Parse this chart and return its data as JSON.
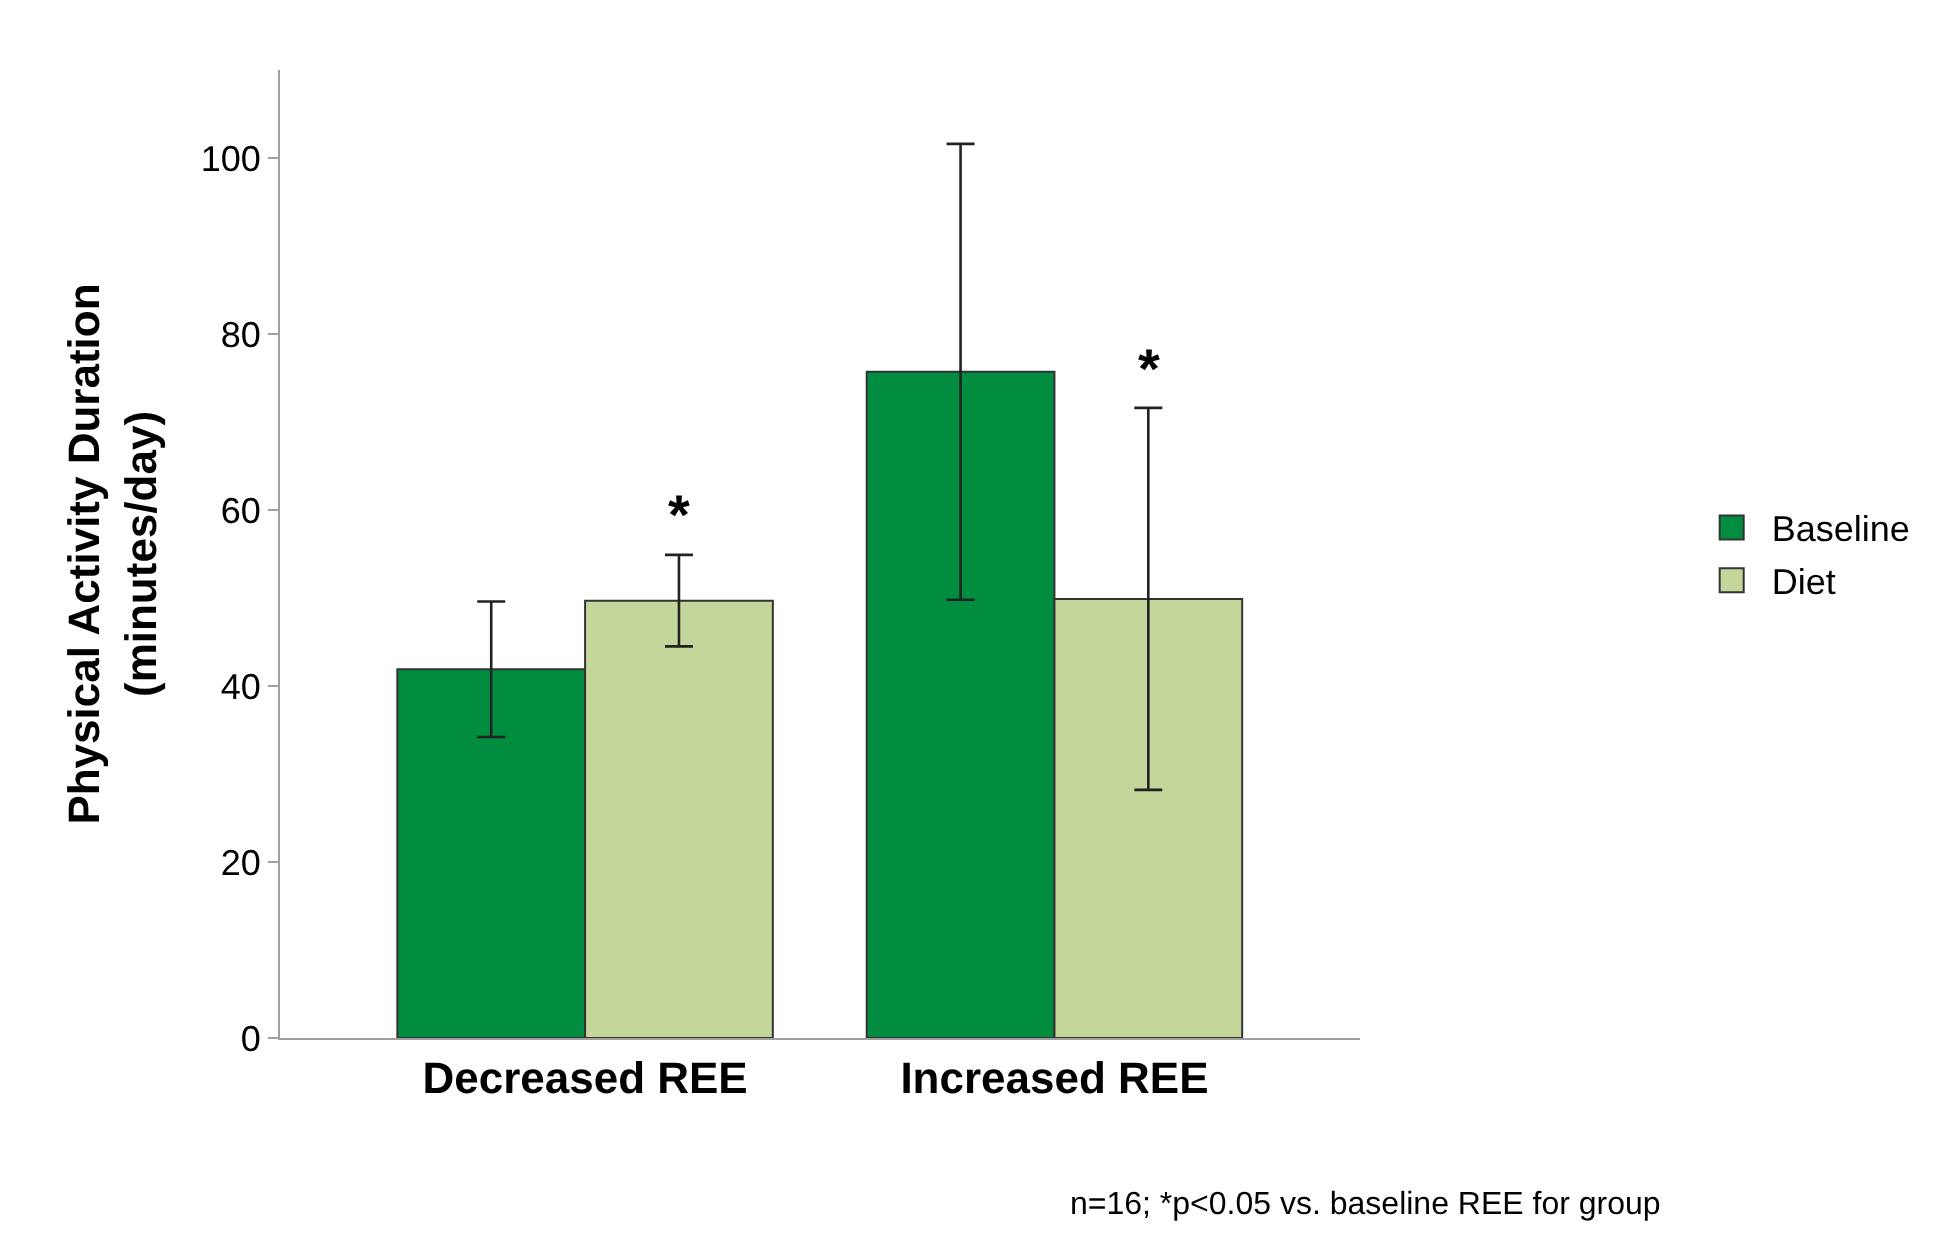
{
  "chart_data": {
    "type": "bar",
    "ylabel": "Physical Activity Duration\n(minutes/day)",
    "categories": [
      "Decreased REE",
      "Increased REE"
    ],
    "series": [
      {
        "name": "Baseline",
        "color": "#008d3f",
        "values": [
          41.9,
          75.7
        ],
        "errors": [
          7.7,
          25.9
        ]
      },
      {
        "name": "Diet",
        "color": "#c4d79b",
        "values": [
          49.7,
          49.9
        ],
        "errors": [
          5.2,
          21.7
        ]
      }
    ],
    "ylim": [
      0,
      110
    ],
    "yticks": [
      0,
      20,
      40,
      60,
      80,
      100
    ],
    "legend": "right",
    "annotations": [
      "*",
      "*",
      "n=16; *p<0.05 vs. baseline REE for group"
    ]
  }
}
